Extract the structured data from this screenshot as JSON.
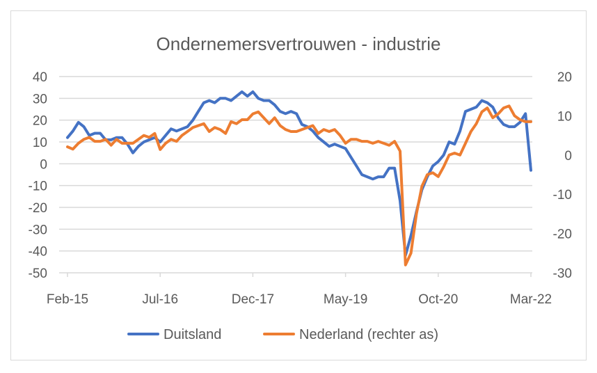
{
  "chart_data": {
    "type": "line",
    "title": "Ondernemersvertrouwen - industrie",
    "xlabel": "",
    "ylabel": "",
    "x_tick_labels": [
      "Feb-15",
      "Jul-16",
      "Dec-17",
      "May-19",
      "Oct-20",
      "Mar-22"
    ],
    "x_start": "Feb-15",
    "x_end": "Mar-22",
    "frequency": "monthly",
    "ylim_left": [
      -50,
      40
    ],
    "y_ticks_left": [
      40,
      30,
      20,
      10,
      0,
      -10,
      -20,
      -30,
      -40,
      -50
    ],
    "ylim_right": [
      -30,
      20
    ],
    "y_ticks_right": [
      20,
      10,
      0,
      -10,
      -20,
      -30
    ],
    "grid": true,
    "legend_position": "bottom",
    "series": [
      {
        "name": "Duitsland",
        "axis": "left",
        "color": "#4472C4",
        "values": [
          12,
          15,
          19,
          17,
          13,
          14,
          14,
          11,
          11,
          12,
          12,
          9,
          5,
          8,
          10,
          11,
          12,
          10,
          13,
          16,
          15,
          16,
          17,
          20,
          24,
          28,
          29,
          28,
          30,
          30,
          29,
          31,
          33,
          31,
          33,
          30,
          29,
          29,
          27,
          24,
          23,
          24,
          23,
          18,
          17,
          15,
          12,
          10,
          8,
          9,
          8,
          7,
          3,
          -1,
          -5,
          -6,
          -7,
          -6,
          -6,
          -2,
          -2,
          -17,
          -42,
          -33,
          -22,
          -12,
          -6,
          -1,
          1,
          4,
          10,
          9,
          15,
          24,
          25,
          26,
          29,
          28,
          26,
          21,
          18,
          17,
          17,
          19,
          23,
          -3
        ]
      },
      {
        "name": "Nederland (rechter as)",
        "axis": "right",
        "color": "#ED7D31",
        "values": [
          2.1,
          1.5,
          3,
          4,
          4.5,
          3.5,
          3.5,
          4,
          2.5,
          4,
          3,
          3,
          3,
          4,
          5,
          4.5,
          5.5,
          1.4,
          3,
          4,
          3.5,
          5,
          6,
          7,
          7.5,
          8,
          6,
          7,
          6.5,
          5.5,
          8.5,
          8,
          9,
          9,
          10.5,
          11,
          9.5,
          8,
          9.5,
          7.5,
          6.5,
          6,
          6,
          6.5,
          7,
          7.5,
          5.5,
          6.5,
          6,
          6.5,
          5,
          3,
          4,
          4,
          3.5,
          3.5,
          3,
          3.5,
          3,
          2.5,
          3.5,
          1,
          -28,
          -25,
          -15,
          -8,
          -5,
          -4.5,
          -5.5,
          -3,
          0,
          0.5,
          0,
          3,
          6,
          8,
          11,
          12,
          9.5,
          10.5,
          12,
          12.5,
          10,
          9,
          8.5,
          8.5
        ]
      }
    ]
  }
}
